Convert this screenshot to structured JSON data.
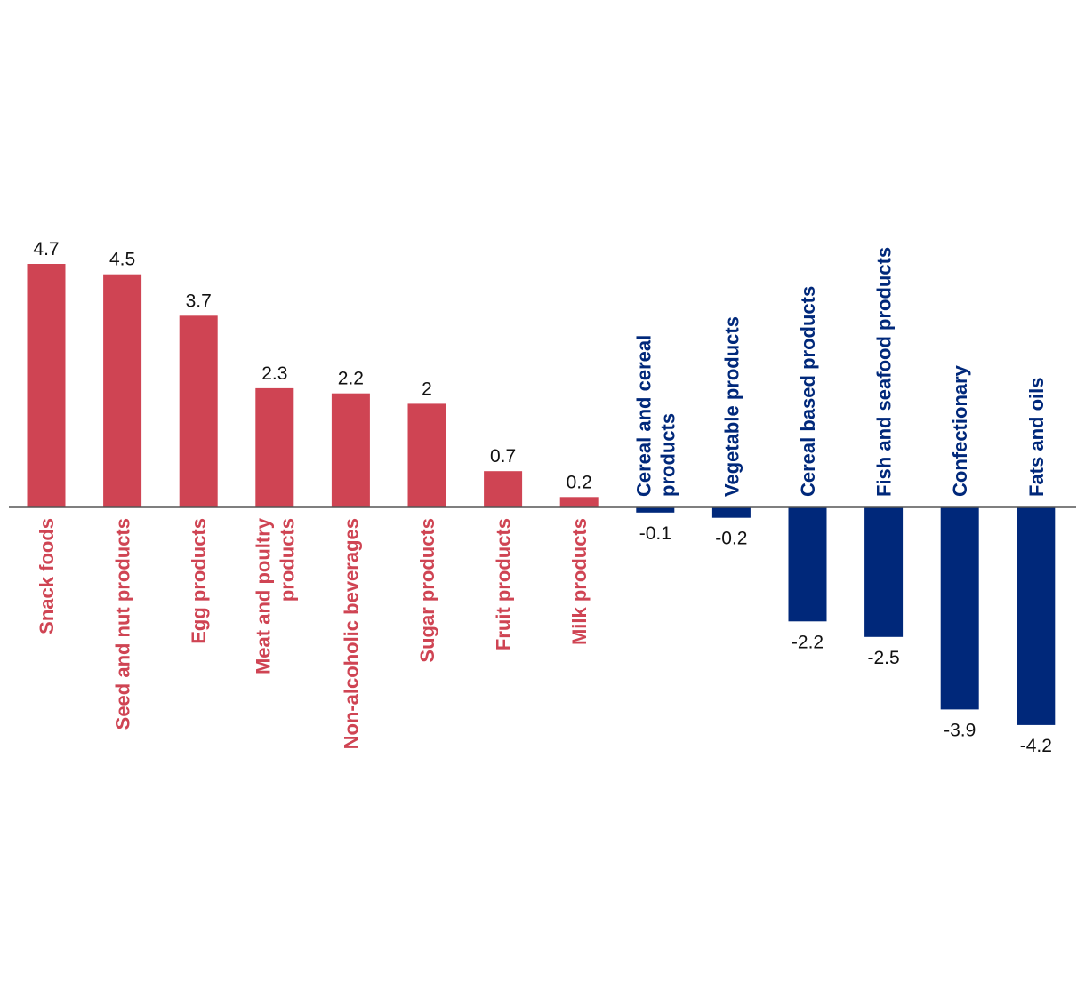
{
  "chart_data": {
    "type": "bar",
    "title": "",
    "xlabel": "",
    "ylabel": "",
    "ylim": [
      -4.7,
      4.7
    ],
    "grid": false,
    "legend": "none",
    "colors": {
      "positive": "#cf4453",
      "negative": "#00287a",
      "axis": "#555555"
    },
    "categories": [
      [
        "Snack foods"
      ],
      [
        "Seed and nut products"
      ],
      [
        "Egg products"
      ],
      [
        "Meat and poultry",
        "products"
      ],
      [
        "Non-alcoholic beverages"
      ],
      [
        "Sugar products"
      ],
      [
        "Fruit products"
      ],
      [
        "Milk products"
      ],
      [
        "Cereal and cereal",
        "products"
      ],
      [
        "Vegetable products"
      ],
      [
        "Cereal based products"
      ],
      [
        "Fish and seafood products"
      ],
      [
        "Confectionary"
      ],
      [
        "Fats and oils"
      ]
    ],
    "values": [
      4.7,
      4.5,
      3.7,
      2.3,
      2.2,
      2,
      0.7,
      0.2,
      -0.1,
      -0.2,
      -2.2,
      -2.5,
      -3.9,
      -4.2
    ],
    "value_labels": [
      "4.7",
      "4.5",
      "3.7",
      "2.3",
      "2.2",
      "2",
      "0.7",
      "0.2",
      "-0.1",
      "-0.2",
      "-2.2",
      "-2.5",
      "-3.9",
      "-4.2"
    ]
  }
}
